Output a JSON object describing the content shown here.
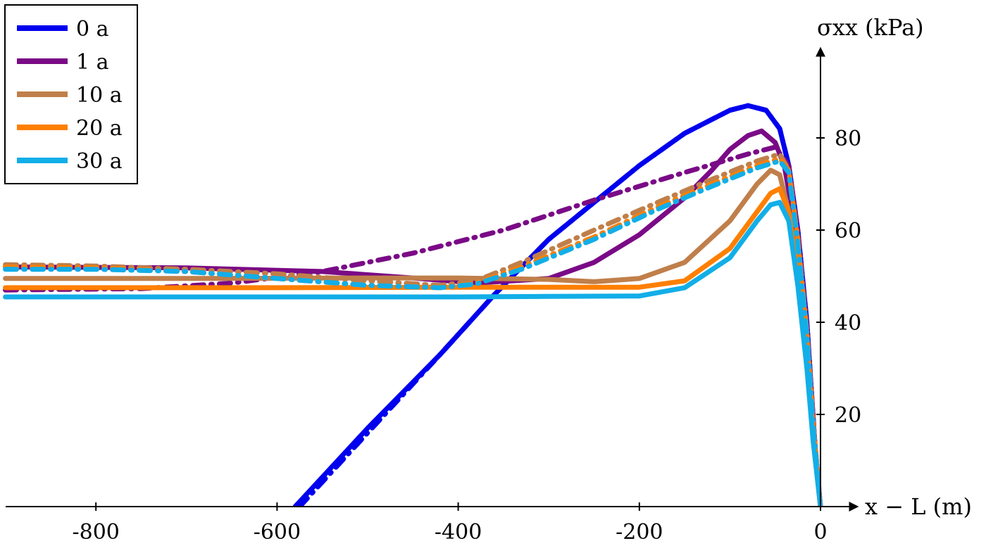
{
  "chart_data": {
    "type": "line",
    "xlabel": "x − L (m)",
    "ylabel": "σxx (kPa)",
    "xlim": [
      -900,
      40
    ],
    "ylim": [
      0,
      92
    ],
    "x_ticks": [
      -800,
      -600,
      -400,
      -200,
      0
    ],
    "x_tick_labels": [
      "-800",
      "-600",
      "-400",
      "-200",
      "0"
    ],
    "y_ticks": [
      20,
      40,
      60,
      80
    ],
    "y_tick_labels": [
      "20",
      "40",
      "60",
      "80"
    ],
    "grid": false,
    "legend_position": "top-left",
    "series": [
      {
        "name": "0 a",
        "color": "#0000ee",
        "style": "solid",
        "x": [
          -580,
          -500,
          -420,
          -360,
          -300,
          -250,
          -200,
          -150,
          -100,
          -80,
          -60,
          -45,
          -35,
          -25,
          -15,
          -10,
          -5,
          0
        ],
        "y": [
          0,
          17,
          33,
          46,
          58,
          66,
          74,
          81,
          86,
          87,
          86,
          82,
          74,
          60,
          40,
          25,
          10,
          0
        ]
      },
      {
        "name": "0 a",
        "color": "#0000ee",
        "style": "dashdot",
        "x": [
          -575,
          -500,
          -420,
          -360,
          -300,
          -250,
          -200,
          -150,
          -100,
          -80,
          -60,
          -45,
          -35,
          -25,
          -15,
          -10,
          -5,
          0
        ],
        "y": [
          0,
          16,
          33,
          46,
          58,
          66,
          74,
          81,
          86,
          87,
          86,
          82,
          74,
          60,
          40,
          25,
          10,
          0
        ]
      },
      {
        "name": "1 a",
        "color": "#7a0a86",
        "style": "solid",
        "x": [
          -900,
          -700,
          -550,
          -450,
          -380,
          -300,
          -250,
          -200,
          -150,
          -120,
          -100,
          -80,
          -65,
          -50,
          -40,
          -30,
          -20,
          -10,
          -5,
          0
        ],
        "y": [
          52,
          51.8,
          51,
          49.6,
          48.5,
          49.5,
          53,
          59,
          67,
          73,
          77.5,
          80.5,
          81.5,
          79,
          74,
          63,
          45,
          25,
          10,
          0
        ]
      },
      {
        "name": "1 a",
        "color": "#7a0a86",
        "style": "dashdot",
        "x": [
          -900,
          -750,
          -650,
          -550,
          -450,
          -350,
          -250,
          -150,
          -80,
          -50,
          -35,
          -25,
          -15,
          -8,
          0
        ],
        "y": [
          47,
          47.3,
          48.5,
          51,
          55,
          60,
          66.5,
          72.5,
          76.5,
          78,
          74,
          60,
          38,
          18,
          0
        ]
      },
      {
        "name": "10 a",
        "color": "#c07f4a",
        "style": "solid",
        "x": [
          -900,
          -700,
          -500,
          -400,
          -300,
          -250,
          -200,
          -150,
          -100,
          -70,
          -55,
          -45,
          -35,
          -25,
          -15,
          -8,
          0
        ],
        "y": [
          49.5,
          49.5,
          49.6,
          49.6,
          49.3,
          48.8,
          49.5,
          53,
          62,
          70,
          73,
          72,
          64,
          50,
          32,
          15,
          0
        ]
      },
      {
        "name": "10 a",
        "color": "#c07f4a",
        "style": "dashdot",
        "x": [
          -900,
          -800,
          -700,
          -600,
          -500,
          -420,
          -380,
          -330,
          -250,
          -180,
          -120,
          -70,
          -45,
          -35,
          -25,
          -15,
          -8,
          0
        ],
        "y": [
          52.5,
          52.2,
          51.5,
          50.5,
          49,
          48,
          49,
          53,
          60,
          66,
          71,
          75,
          76.5,
          73,
          58,
          38,
          18,
          0
        ]
      },
      {
        "name": "20 a",
        "color": "#ff7f00",
        "style": "solid",
        "x": [
          -900,
          -600,
          -400,
          -300,
          -200,
          -150,
          -100,
          -70,
          -55,
          -45,
          -35,
          -25,
          -15,
          -8,
          0
        ],
        "y": [
          47.5,
          47.5,
          47.6,
          47.6,
          47.6,
          49,
          56,
          64,
          68,
          69,
          64,
          50,
          32,
          15,
          0
        ]
      },
      {
        "name": "20 a",
        "color": "#ff7f00",
        "style": "dashdot",
        "x": [
          -900,
          -800,
          -700,
          -600,
          -500,
          -420,
          -380,
          -330,
          -250,
          -180,
          -120,
          -70,
          -45,
          -35,
          -25,
          -15,
          -8,
          0
        ],
        "y": [
          52,
          51.8,
          51,
          49.5,
          48,
          47.5,
          48.5,
          52,
          58.5,
          65,
          70,
          74,
          75.5,
          73,
          58,
          38,
          18,
          0
        ]
      },
      {
        "name": "30 a",
        "color": "#12aee8",
        "style": "solid",
        "x": [
          -900,
          -600,
          -400,
          -300,
          -200,
          -150,
          -100,
          -70,
          -55,
          -45,
          -35,
          -25,
          -15,
          -8,
          0
        ],
        "y": [
          45.5,
          45.5,
          45.5,
          45.6,
          45.7,
          47.5,
          54,
          62,
          65.5,
          66,
          62,
          48,
          30,
          14,
          0
        ]
      },
      {
        "name": "30 a",
        "color": "#12aee8",
        "style": "dashdot",
        "x": [
          -900,
          -800,
          -700,
          -600,
          -500,
          -420,
          -380,
          -330,
          -250,
          -180,
          -120,
          -70,
          -45,
          -35,
          -25,
          -15,
          -8,
          0
        ],
        "y": [
          51.5,
          51.5,
          51,
          49.5,
          48,
          47.5,
          48.3,
          51.5,
          58,
          64.5,
          69.5,
          73.5,
          75,
          72.5,
          57,
          37,
          17,
          0
        ]
      }
    ],
    "legend": [
      {
        "label": "0 a",
        "color": "#0000ee"
      },
      {
        "label": "1 a",
        "color": "#7a0a86"
      },
      {
        "label": "10 a",
        "color": "#c07f4a"
      },
      {
        "label": "20 a",
        "color": "#ff7f00"
      },
      {
        "label": "30 a",
        "color": "#12aee8"
      }
    ]
  }
}
